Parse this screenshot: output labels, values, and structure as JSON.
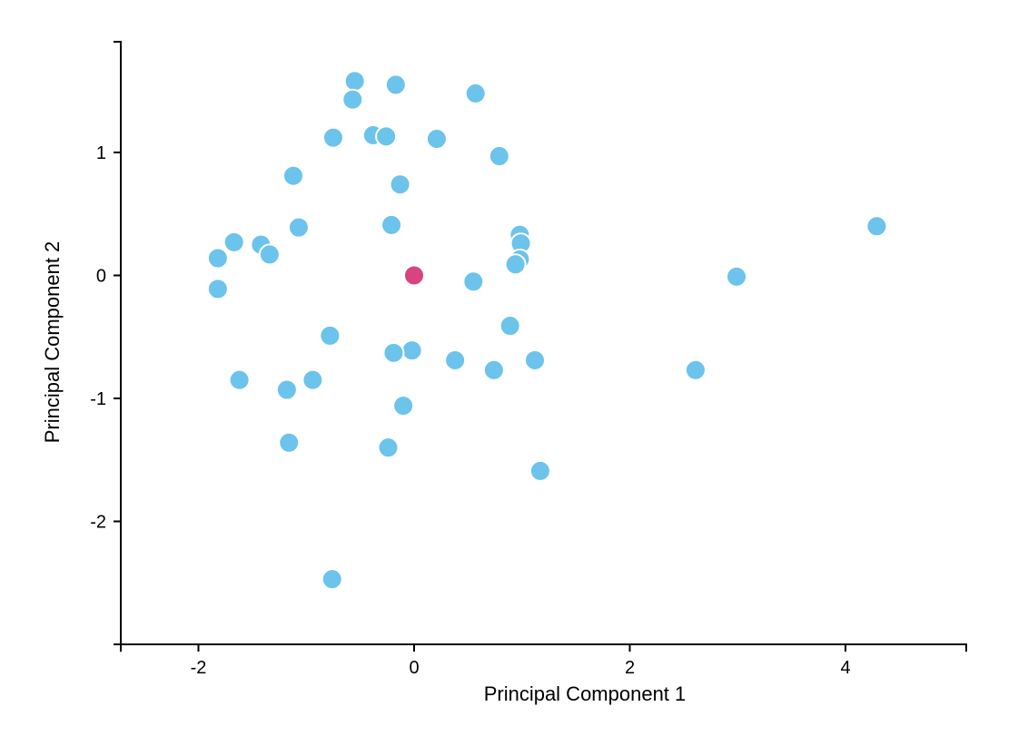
{
  "chart_data": {
    "type": "scatter",
    "title": "",
    "xlabel": "Principal Component 1",
    "ylabel": "Principal Component 2",
    "xlim": [
      -2.72,
      5.12
    ],
    "ylim": [
      -3.0,
      1.9
    ],
    "x_ticks": [
      -2,
      0,
      2,
      4
    ],
    "y_ticks": [
      -2,
      -1,
      0,
      1
    ],
    "colors": {
      "points": "#6cc3ec",
      "highlight": "#d6457f"
    },
    "points": [
      {
        "x": -0.55,
        "y": 1.58
      },
      {
        "x": -0.17,
        "y": 1.55
      },
      {
        "x": 0.57,
        "y": 1.48
      },
      {
        "x": -0.57,
        "y": 1.43
      },
      {
        "x": -0.75,
        "y": 1.12
      },
      {
        "x": -0.38,
        "y": 1.14
      },
      {
        "x": -0.26,
        "y": 1.13
      },
      {
        "x": 0.21,
        "y": 1.11
      },
      {
        "x": 0.79,
        "y": 0.97
      },
      {
        "x": -1.12,
        "y": 0.81
      },
      {
        "x": -0.13,
        "y": 0.74
      },
      {
        "x": -1.07,
        "y": 0.39
      },
      {
        "x": -0.21,
        "y": 0.41
      },
      {
        "x": 4.29,
        "y": 0.4
      },
      {
        "x": 0.98,
        "y": 0.33
      },
      {
        "x": 0.99,
        "y": 0.26
      },
      {
        "x": -1.67,
        "y": 0.27
      },
      {
        "x": -1.42,
        "y": 0.25
      },
      {
        "x": -1.34,
        "y": 0.17
      },
      {
        "x": -1.82,
        "y": 0.14
      },
      {
        "x": 0.98,
        "y": 0.13
      },
      {
        "x": 0.94,
        "y": 0.09
      },
      {
        "x": 2.99,
        "y": -0.01
      },
      {
        "x": 0.55,
        "y": -0.05
      },
      {
        "x": -1.82,
        "y": -0.11
      },
      {
        "x": 0.89,
        "y": -0.41
      },
      {
        "x": -0.78,
        "y": -0.49
      },
      {
        "x": -0.02,
        "y": -0.61
      },
      {
        "x": -0.19,
        "y": -0.63
      },
      {
        "x": 0.38,
        "y": -0.69
      },
      {
        "x": 1.12,
        "y": -0.69
      },
      {
        "x": 0.74,
        "y": -0.77
      },
      {
        "x": 2.61,
        "y": -0.77
      },
      {
        "x": -1.62,
        "y": -0.85
      },
      {
        "x": -0.94,
        "y": -0.85
      },
      {
        "x": -1.18,
        "y": -0.93
      },
      {
        "x": -0.1,
        "y": -1.06
      },
      {
        "x": -1.16,
        "y": -1.36
      },
      {
        "x": -0.24,
        "y": -1.4
      },
      {
        "x": 1.17,
        "y": -1.59
      },
      {
        "x": -0.76,
        "y": -2.47
      }
    ],
    "highlight": [
      {
        "x": 0.0,
        "y": 0.0
      }
    ],
    "grid": false,
    "legend": "none"
  }
}
